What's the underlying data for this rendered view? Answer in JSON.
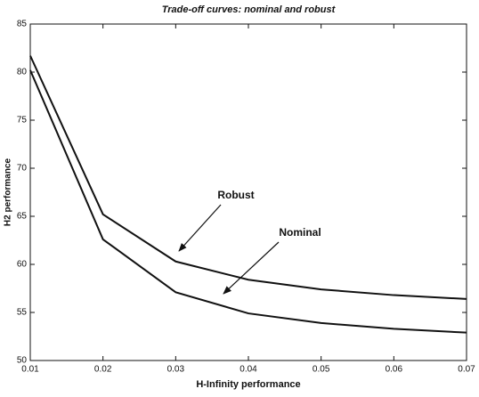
{
  "chart_data": {
    "type": "line",
    "title": "Trade-off curves: nominal  and robust",
    "x_label": "H-Infinity performance",
    "y_label": "H2 performance",
    "x": [
      0.01,
      0.02,
      0.03,
      0.04,
      0.05,
      0.06,
      0.07
    ],
    "series": [
      {
        "name": "Robust",
        "color": "#111111",
        "values": [
          81.7,
          65.2,
          60.3,
          58.4,
          57.4,
          56.8,
          56.4
        ]
      },
      {
        "name": "Nominal",
        "color": "#111111",
        "values": [
          80.2,
          62.6,
          57.1,
          54.9,
          53.9,
          53.3,
          52.9
        ]
      }
    ],
    "xlim": [
      0.01,
      0.07
    ],
    "xticks": [
      0.01,
      0.02,
      0.03,
      0.04,
      0.05,
      0.06,
      0.07
    ],
    "ylim": [
      50,
      85
    ],
    "yticks": [
      50,
      55,
      60,
      65,
      70,
      75,
      80,
      85
    ],
    "grid": false
  }
}
